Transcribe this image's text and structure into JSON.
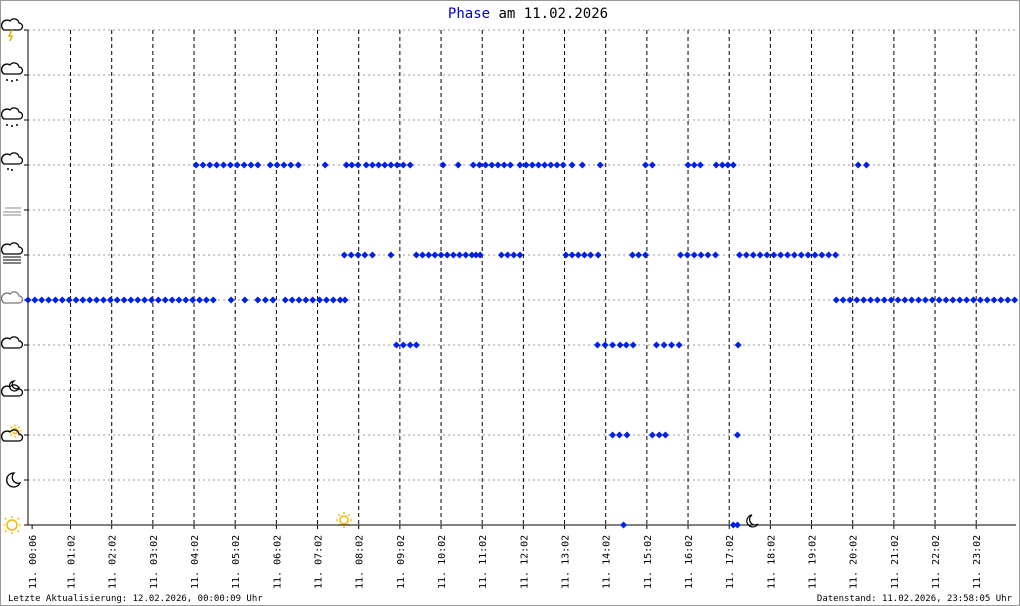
{
  "chart_data": {
    "type": "scatter",
    "title": [
      "Phase",
      "am 11.02.2026"
    ],
    "title_color": "#0000cc",
    "color": "#0020e8",
    "xlim": [
      0,
      1440
    ],
    "ylim": [
      0,
      11
    ],
    "yticks": [
      0,
      1,
      2,
      3,
      4,
      5,
      6,
      7,
      8,
      9,
      10,
      11
    ],
    "xticks": [
      {
        "value": 6,
        "label": "11. 00:06"
      },
      {
        "value": 62,
        "label": "11. 01:02"
      },
      {
        "value": 122,
        "label": "11. 02:02"
      },
      {
        "value": 182,
        "label": "11. 03:02"
      },
      {
        "value": 242,
        "label": "11. 04:02"
      },
      {
        "value": 302,
        "label": "11. 05:02"
      },
      {
        "value": 362,
        "label": "11. 06:02"
      },
      {
        "value": 422,
        "label": "11. 07:02"
      },
      {
        "value": 482,
        "label": "11. 08:02"
      },
      {
        "value": 542,
        "label": "11. 09:02"
      },
      {
        "value": 602,
        "label": "11. 10:02"
      },
      {
        "value": 662,
        "label": "11. 11:02"
      },
      {
        "value": 722,
        "label": "11. 12:02"
      },
      {
        "value": 782,
        "label": "11. 13:02"
      },
      {
        "value": 842,
        "label": "11. 14:02"
      },
      {
        "value": 902,
        "label": "11. 15:02"
      },
      {
        "value": 962,
        "label": "11. 16:02"
      },
      {
        "value": 1022,
        "label": "11. 17:02"
      },
      {
        "value": 1082,
        "label": "11. 18:02"
      },
      {
        "value": 1142,
        "label": "11. 19:02"
      },
      {
        "value": 1202,
        "label": "11. 20:02"
      },
      {
        "value": 1262,
        "label": "11. 21:02"
      },
      {
        "value": 1322,
        "label": "11. 22:02"
      },
      {
        "value": 1382,
        "label": "11. 23:02"
      }
    ],
    "series": [
      {
        "x": [
          0,
          10,
          20,
          30,
          40,
          50,
          60,
          70,
          80,
          90,
          100,
          110,
          120,
          130,
          140,
          150,
          160,
          170,
          180,
          190,
          200,
          210,
          220,
          230,
          240,
          250,
          260,
          270,
          296,
          316,
          335,
          346,
          357,
          375,
          385,
          395,
          405,
          415,
          425,
          435,
          445,
          455,
          462,
          1178,
          1188,
          1198,
          1208,
          1218,
          1228,
          1238,
          1248,
          1258,
          1268,
          1278,
          1288,
          1298,
          1308,
          1318,
          1328,
          1338,
          1348,
          1358,
          1368,
          1378,
          1388,
          1398,
          1408,
          1418,
          1428,
          1438
        ],
        "values": [
          5,
          5,
          5,
          5,
          5,
          5,
          5,
          5,
          5,
          5,
          5,
          5,
          5,
          5,
          5,
          5,
          5,
          5,
          5,
          5,
          5,
          5,
          5,
          5,
          5,
          5,
          5,
          5,
          5,
          5,
          5,
          5,
          5,
          5,
          5,
          5,
          5,
          5,
          5,
          5,
          5,
          5,
          5,
          5,
          5,
          5,
          5,
          5,
          5,
          5,
          5,
          5,
          5,
          5,
          5,
          5,
          5,
          5,
          5,
          5,
          5,
          5,
          5,
          5,
          5,
          5,
          5,
          5,
          5,
          5
        ]
      },
      {
        "x": [
          245,
          255,
          265,
          275,
          285,
          295,
          305,
          315,
          325,
          335,
          353,
          363,
          373,
          383,
          394,
          433,
          464,
          472,
          481,
          493,
          502,
          511,
          520,
          529,
          538,
          547,
          557,
          605,
          627,
          649,
          658,
          667,
          676,
          685,
          694,
          703,
          717,
          726,
          735,
          744,
          753,
          762,
          771,
          780,
          793,
          808,
          834,
          900,
          910,
          962,
          971,
          980,
          1003,
          1012,
          1020,
          1028,
          1210,
          1222
        ],
        "values": [
          8,
          8,
          8,
          8,
          8,
          8,
          8,
          8,
          8,
          8,
          8,
          8,
          8,
          8,
          8,
          8,
          8,
          8,
          8,
          8,
          8,
          8,
          8,
          8,
          8,
          8,
          8,
          8,
          8,
          8,
          8,
          8,
          8,
          8,
          8,
          8,
          8,
          8,
          8,
          8,
          8,
          8,
          8,
          8,
          8,
          8,
          8,
          8,
          8,
          8,
          8,
          8,
          8,
          8,
          8,
          8,
          8,
          8
        ]
      },
      {
        "x": [
          461,
          471,
          481,
          491,
          502,
          529,
          566,
          575,
          584,
          593,
          602,
          611,
          620,
          629,
          638,
          647,
          653,
          659,
          690,
          699,
          708,
          717,
          784,
          793,
          802,
          811,
          820,
          831,
          881,
          890,
          900,
          951,
          961,
          971,
          981,
          991,
          1002,
          1037,
          1047,
          1057,
          1067,
          1077,
          1087,
          1097,
          1107,
          1117,
          1127,
          1137,
          1147,
          1157,
          1167,
          1177
        ],
        "values": [
          6,
          6,
          6,
          6,
          6,
          6,
          6,
          6,
          6,
          6,
          6,
          6,
          6,
          6,
          6,
          6,
          6,
          6,
          6,
          6,
          6,
          6,
          6,
          6,
          6,
          6,
          6,
          6,
          6,
          6,
          6,
          6,
          6,
          6,
          6,
          6,
          6,
          6,
          6,
          6,
          6,
          6,
          6,
          6,
          6,
          6,
          6,
          6,
          6,
          6,
          6,
          6
        ]
      },
      {
        "x": [
          537,
          547,
          557,
          566,
          830,
          841,
          852,
          863,
          872,
          882,
          916,
          927,
          938,
          949,
          1035
        ],
        "values": [
          4,
          4,
          4,
          4,
          4,
          4,
          4,
          4,
          4,
          4,
          4,
          4,
          4,
          4,
          4
        ]
      },
      {
        "x": [
          852,
          862,
          873,
          910,
          920,
          929,
          1034
        ],
        "values": [
          2,
          2,
          2,
          2,
          2,
          2,
          2
        ]
      },
      {
        "x": [
          868,
          1028,
          1034
        ],
        "values": [
          0,
          0,
          0
        ]
      }
    ],
    "footer": {
      "left": "Letzte Aktualisierung: 12.02.2026, 00:00:09 Uhr",
      "right": "Datenstand: 11.02.2026, 23:58:05 Uhr"
    }
  }
}
